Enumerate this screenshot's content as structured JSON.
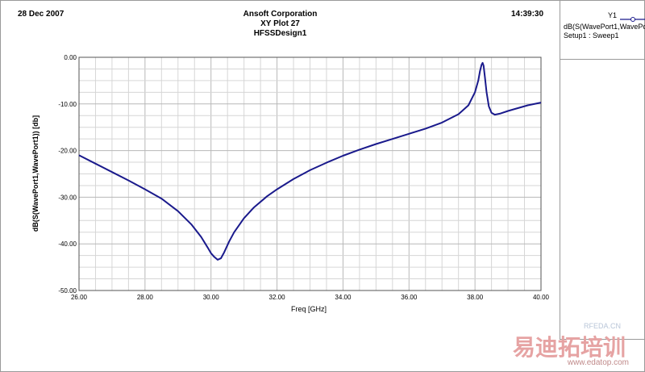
{
  "header": {
    "date": "28 Dec 2007",
    "company": "Ansoft Corporation",
    "plot_name": "XY Plot 27",
    "design": "HFSSDesign1",
    "time": "14:39:30"
  },
  "legend": {
    "trace_name": "Y1",
    "trace_expr": "dB(S(WavePort1,WavePo",
    "solution": "Setup1 : Sweep1"
  },
  "watermark": {
    "site": "www.edatop.com",
    "brand": "易迪拓培训",
    "small": "RFEDA.CN"
  },
  "chart_data": {
    "type": "line",
    "xlabel": "Freq [GHz]",
    "ylabel": "dB(S(WavePort1,WavePort1)) [db]",
    "xlim": [
      26.0,
      40.0
    ],
    "ylim": [
      -50.0,
      0.0
    ],
    "x_ticks": [
      "26.00",
      "28.00",
      "30.00",
      "32.00",
      "34.00",
      "36.00",
      "38.00",
      "40.00"
    ],
    "y_ticks": [
      "0.00",
      "-10.00",
      "-20.00",
      "-30.00",
      "-40.00",
      "-50.00"
    ],
    "grid": true,
    "series": [
      {
        "color": "#1a1a8c",
        "x": [
          26.0,
          26.5,
          27.0,
          27.5,
          28.0,
          28.5,
          29.0,
          29.4,
          29.7,
          29.9,
          30.0,
          30.1,
          30.2,
          30.3,
          30.4,
          30.55,
          30.7,
          31.0,
          31.3,
          31.7,
          32.0,
          32.5,
          33.0,
          33.5,
          34.0,
          34.5,
          35.0,
          35.5,
          36.0,
          36.5,
          37.0,
          37.5,
          37.8,
          38.0,
          38.1,
          38.15,
          38.2,
          38.23,
          38.26,
          38.3,
          38.35,
          38.42,
          38.5,
          38.6,
          38.75,
          39.0,
          39.3,
          39.6,
          40.0
        ],
        "values": [
          -21.0,
          -22.8,
          -24.6,
          -26.4,
          -28.3,
          -30.3,
          -33.0,
          -35.8,
          -38.5,
          -40.8,
          -42.0,
          -42.8,
          -43.4,
          -43.1,
          -41.8,
          -39.5,
          -37.5,
          -34.5,
          -32.2,
          -29.8,
          -28.3,
          -26.1,
          -24.2,
          -22.6,
          -21.1,
          -19.8,
          -18.6,
          -17.5,
          -16.4,
          -15.3,
          -14.0,
          -12.2,
          -10.3,
          -7.5,
          -5.0,
          -3.0,
          -1.6,
          -1.2,
          -1.8,
          -4.2,
          -7.5,
          -10.5,
          -11.9,
          -12.3,
          -12.1,
          -11.5,
          -10.9,
          -10.3,
          -9.7
        ]
      }
    ]
  }
}
